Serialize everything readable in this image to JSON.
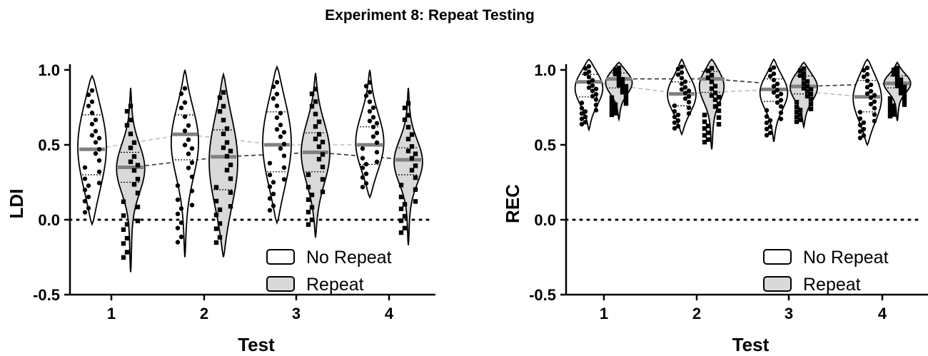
{
  "figure_title": "Experiment 8: Repeat Testing",
  "colors": {
    "no_repeat_fill": "#ffffff",
    "repeat_fill": "#d9d9d9",
    "median_line": "#808080",
    "outline": "#000000"
  },
  "chart_data": [
    {
      "type": "violin",
      "ylabel": "LDI",
      "xlabel": "Test",
      "ylim": [
        -0.5,
        1.0
      ],
      "yticks": [
        "1.0",
        "0.5",
        "0.0",
        "-0.5"
      ],
      "categories": [
        "1",
        "2",
        "3",
        "4"
      ],
      "reference_line": 0.0,
      "legend": [
        "No Repeat",
        "Repeat"
      ],
      "series": [
        {
          "name": "No Repeat",
          "min": [
            -0.03,
            -0.25,
            -0.02,
            0.15
          ],
          "max": [
            0.96,
            1.0,
            1.02,
            1.0
          ],
          "median": [
            0.47,
            0.57,
            0.5,
            0.5
          ],
          "q1": [
            0.3,
            0.4,
            0.32,
            0.37
          ],
          "q3": [
            0.7,
            0.7,
            0.72,
            0.62
          ]
        },
        {
          "name": "Repeat",
          "min": [
            -0.35,
            -0.25,
            -0.12,
            -0.17
          ],
          "max": [
            0.88,
            0.97,
            0.98,
            0.88
          ],
          "median": [
            0.35,
            0.42,
            0.45,
            0.4
          ],
          "q1": [
            0.25,
            0.2,
            0.32,
            0.3
          ],
          "q3": [
            0.45,
            0.6,
            0.58,
            0.48
          ]
        }
      ]
    },
    {
      "type": "violin",
      "ylabel": "REC",
      "xlabel": "Test",
      "ylim": [
        -0.5,
        1.0
      ],
      "yticks": [
        "1.0",
        "0.5",
        "0.0",
        "-0.5"
      ],
      "categories": [
        "1",
        "2",
        "3",
        "4"
      ],
      "reference_line": 0.0,
      "legend": [
        "No Repeat",
        "Repeat"
      ],
      "series": [
        {
          "name": "No Repeat",
          "min": [
            0.6,
            0.57,
            0.52,
            0.5
          ],
          "max": [
            1.07,
            1.07,
            1.07,
            1.07
          ],
          "median": [
            0.92,
            0.84,
            0.87,
            0.82
          ],
          "q1": [
            0.82,
            0.76,
            0.79,
            0.72
          ],
          "q3": [
            0.97,
            0.92,
            0.94,
            0.93
          ]
        },
        {
          "name": "Repeat",
          "min": [
            0.67,
            0.47,
            0.62,
            0.66
          ],
          "max": [
            1.05,
            1.07,
            1.05,
            1.05
          ],
          "median": [
            0.94,
            0.94,
            0.89,
            0.91
          ],
          "q1": [
            0.88,
            0.85,
            0.84,
            0.88
          ],
          "q3": [
            0.98,
            0.99,
            0.96,
            0.96
          ]
        }
      ]
    }
  ]
}
